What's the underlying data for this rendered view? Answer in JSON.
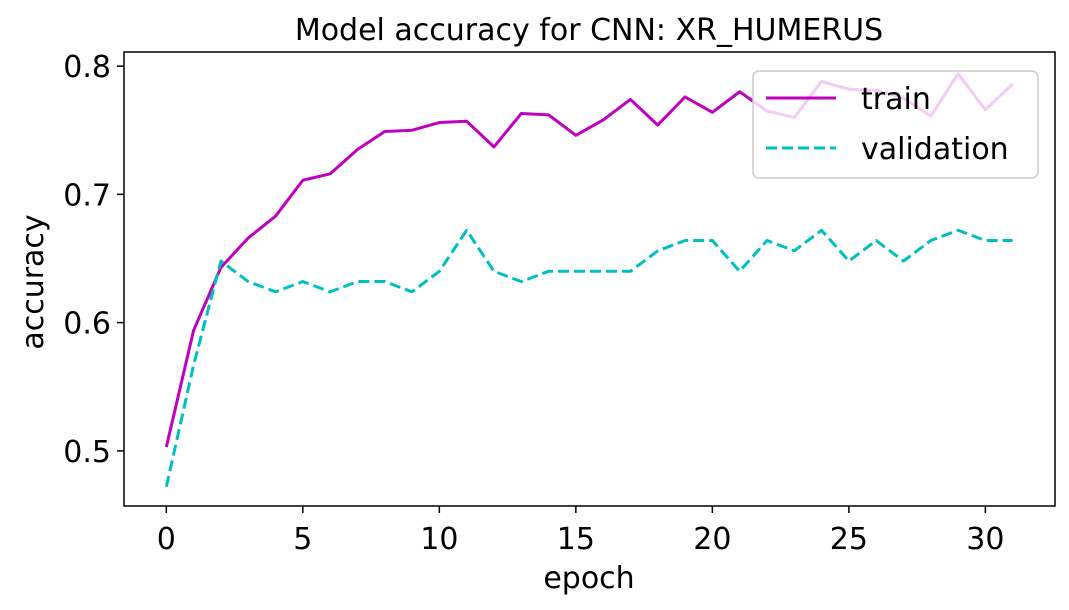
{
  "chart_data": {
    "type": "line",
    "title": "Model accuracy for CNN: XR_HUMERUS",
    "xlabel": "epoch",
    "ylabel": "accuracy",
    "xlim": [
      -1.55,
      32.55
    ],
    "ylim": [
      0.457,
      0.811
    ],
    "xticks": [
      0,
      5,
      10,
      15,
      20,
      25,
      30
    ],
    "yticks": [
      0.5,
      0.6,
      0.7,
      0.8
    ],
    "ytick_labels": [
      "0.5",
      "0.6",
      "0.7",
      "0.8"
    ],
    "grid": false,
    "legend_position": "top-right",
    "x": [
      0,
      1,
      2,
      3,
      4,
      5,
      6,
      7,
      8,
      9,
      10,
      11,
      12,
      13,
      14,
      15,
      16,
      17,
      18,
      19,
      20,
      21,
      22,
      23,
      24,
      25,
      26,
      27,
      28,
      29,
      30,
      31
    ],
    "series": [
      {
        "name": "train",
        "color": "#bf00bf",
        "style": "solid",
        "values": [
          0.503,
          0.594,
          0.643,
          0.666,
          0.683,
          0.711,
          0.716,
          0.735,
          0.749,
          0.75,
          0.756,
          0.757,
          0.737,
          0.763,
          0.762,
          0.746,
          0.758,
          0.774,
          0.754,
          0.776,
          0.764,
          0.78,
          0.765,
          0.76,
          0.788,
          0.782,
          0.781,
          0.775,
          0.761,
          0.794,
          0.766,
          0.786
        ]
      },
      {
        "name": "validation",
        "color": "#00bfbf",
        "style": "dashed",
        "values": [
          0.472,
          0.567,
          0.648,
          0.632,
          0.624,
          0.632,
          0.624,
          0.632,
          0.632,
          0.624,
          0.64,
          0.672,
          0.64,
          0.632,
          0.64,
          0.64,
          0.64,
          0.64,
          0.656,
          0.664,
          0.664,
          0.64,
          0.664,
          0.656,
          0.672,
          0.648,
          0.664,
          0.648,
          0.664,
          0.672,
          0.664,
          0.664
        ]
      }
    ]
  }
}
